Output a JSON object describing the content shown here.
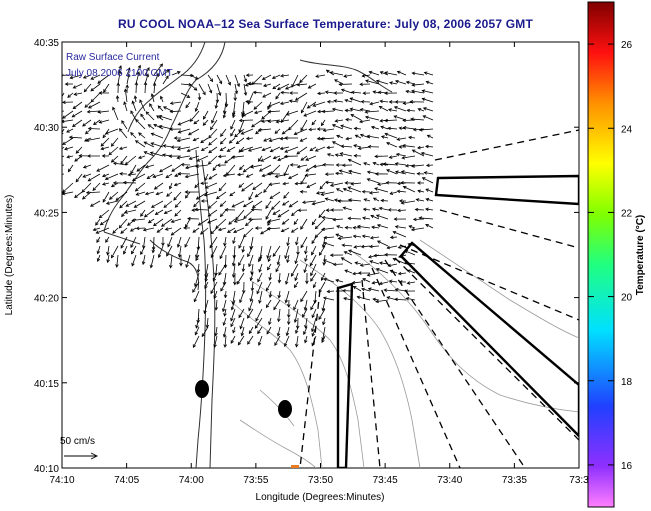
{
  "title": "RU COOL  NOAA–12  Sea Surface Temperature:  July 08, 2006 2057 GMT",
  "overlay": {
    "line1": "Raw Surface Current",
    "line2": "July 08 2006 2100 GMT"
  },
  "axes": {
    "xlabel": "Longitude (Degrees:Minutes)",
    "ylabel": "Latitude (Degrees:Minutes)",
    "xticks": [
      "74:10",
      "74:05",
      "74:00",
      "73:55",
      "73:50",
      "73:45",
      "73:40",
      "73:35",
      "73:3"
    ],
    "yticks": [
      "40:35",
      "40:30",
      "40:25",
      "40:20",
      "40:15",
      "40:10"
    ]
  },
  "scale_label": "50 cm/s",
  "colorbar": {
    "label": "Temperature (°C)",
    "ticks": [
      "26",
      "24",
      "22",
      "20",
      "18",
      "16"
    ],
    "min": 15,
    "max": 27
  },
  "colors": {
    "title": "#1a1a8c",
    "overlay_text": "#2a2aa0"
  }
}
